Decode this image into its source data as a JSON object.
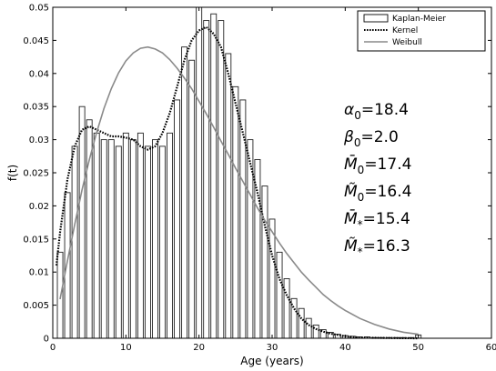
{
  "chart_data": {
    "type": "bar",
    "xlabel": "Age (years)",
    "ylabel": "f(t)",
    "xlim": [
      0,
      60
    ],
    "ylim": [
      0,
      0.05
    ],
    "xticks": [
      "0",
      "10",
      "20",
      "30",
      "40",
      "50",
      "60"
    ],
    "yticks": [
      "0",
      "0.005",
      "0.01",
      "0.015",
      "0.02",
      "0.025",
      "0.03",
      "0.035",
      "0.04",
      "0.045",
      "0.05"
    ],
    "grid": false,
    "legend_position": "top-right",
    "legend": [
      "Kaplan-Meier",
      "Kernel",
      "Weibull"
    ],
    "parameters": [
      {
        "symbol": "α",
        "sub": "0",
        "value": "=18.4"
      },
      {
        "symbol": "β",
        "sub": "0",
        "value": "=2.0"
      },
      {
        "symbol": "M̄",
        "sub": "0",
        "value": "=17.4"
      },
      {
        "symbol": "M̃",
        "sub": "0",
        "value": "=16.4"
      },
      {
        "symbol": "M̄",
        "sub": "*",
        "value": "=15.4"
      },
      {
        "symbol": "M̃",
        "sub": "*",
        "value": "=16.3"
      }
    ],
    "series": [
      {
        "name": "Kaplan-Meier",
        "kind": "histogram",
        "bin_width": 1,
        "x": [
          1,
          2,
          3,
          4,
          5,
          6,
          7,
          8,
          9,
          10,
          11,
          12,
          13,
          14,
          15,
          16,
          17,
          18,
          19,
          20,
          21,
          22,
          23,
          24,
          25,
          26,
          27,
          28,
          29,
          30,
          31,
          32,
          33,
          34,
          35,
          36,
          37,
          38,
          39,
          40,
          41,
          42,
          43,
          44,
          45,
          46,
          47,
          48,
          49,
          50
        ],
        "values": [
          0.013,
          0.022,
          0.029,
          0.035,
          0.033,
          0.031,
          0.03,
          0.03,
          0.029,
          0.031,
          0.03,
          0.031,
          0.029,
          0.03,
          0.029,
          0.031,
          0.036,
          0.044,
          0.042,
          0.05,
          0.048,
          0.049,
          0.048,
          0.043,
          0.038,
          0.036,
          0.03,
          0.027,
          0.023,
          0.018,
          0.013,
          0.009,
          0.006,
          0.0045,
          0.003,
          0.002,
          0.0013,
          0.0009,
          0.0006,
          0.0004,
          0.0003,
          0.0002,
          0.0002,
          0.0001,
          0.0001,
          0.0001,
          0.0001,
          0.0001,
          0.0001,
          0.0005
        ]
      },
      {
        "name": "Kernel",
        "kind": "line",
        "style": "dotted",
        "x": [
          0.5,
          1,
          2,
          3,
          4,
          5,
          6,
          7,
          8,
          9,
          10,
          11,
          12,
          13,
          14,
          15,
          16,
          17,
          18,
          19,
          20,
          21,
          22,
          23,
          24,
          25,
          26,
          27,
          28,
          29,
          30,
          31,
          32,
          33,
          34,
          35,
          36,
          37,
          38,
          40,
          42,
          45,
          48,
          50
        ],
        "values": [
          0.011,
          0.016,
          0.024,
          0.029,
          0.0315,
          0.032,
          0.0315,
          0.031,
          0.0305,
          0.0305,
          0.0303,
          0.03,
          0.029,
          0.0285,
          0.029,
          0.031,
          0.034,
          0.038,
          0.042,
          0.045,
          0.0465,
          0.047,
          0.046,
          0.044,
          0.04,
          0.0355,
          0.031,
          0.0265,
          0.022,
          0.017,
          0.0125,
          0.009,
          0.0065,
          0.0045,
          0.003,
          0.002,
          0.0014,
          0.001,
          0.0007,
          0.0003,
          0.0001,
          5e-05,
          2e-05,
          0.0
        ]
      },
      {
        "name": "Weibull",
        "kind": "line",
        "style": "solid",
        "x": [
          1,
          2,
          3,
          4,
          5,
          6,
          7,
          8,
          9,
          10,
          11,
          12,
          13,
          14,
          15,
          16,
          17,
          18,
          19,
          20,
          21,
          22,
          23,
          24,
          25,
          26,
          27,
          28,
          29,
          30,
          31,
          32,
          33,
          34,
          35,
          36,
          37,
          38,
          39,
          40,
          42,
          44,
          46,
          48,
          50
        ],
        "values": [
          0.0059,
          0.0117,
          0.0172,
          0.0224,
          0.027,
          0.0311,
          0.0347,
          0.0377,
          0.0401,
          0.0419,
          0.0431,
          0.0438,
          0.044,
          0.0437,
          0.0431,
          0.0421,
          0.0408,
          0.0393,
          0.0377,
          0.0358,
          0.0339,
          0.0319,
          0.0298,
          0.0278,
          0.0257,
          0.0237,
          0.0217,
          0.0197,
          0.0178,
          0.0161,
          0.0144,
          0.0128,
          0.0114,
          0.01,
          0.0088,
          0.0077,
          0.0066,
          0.0057,
          0.0049,
          0.0042,
          0.003,
          0.0021,
          0.0014,
          0.0009,
          0.0006
        ]
      }
    ]
  }
}
